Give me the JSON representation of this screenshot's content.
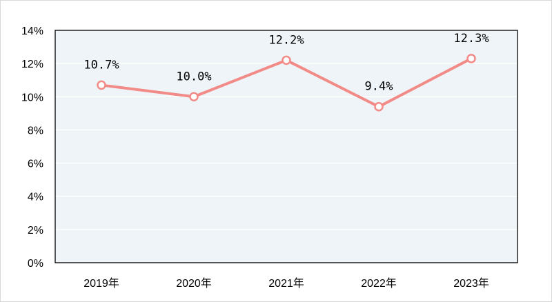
{
  "chart_data": {
    "type": "line",
    "categories": [
      "2019年",
      "2020年",
      "2021年",
      "2022年",
      "2023年"
    ],
    "series": [
      {
        "values": [
          10.7,
          10.0,
          12.2,
          9.4,
          12.3
        ],
        "data_labels": [
          "10.7%",
          "10.0%",
          "12.2%",
          "9.4%",
          "12.3%"
        ],
        "color": "#f28b87"
      }
    ],
    "y_ticks": [
      "0%",
      "2%",
      "4%",
      "6%",
      "8%",
      "10%",
      "12%",
      "14%"
    ],
    "ylim": [
      0,
      14
    ],
    "title": "",
    "xlabel": "",
    "ylabel": "",
    "grid": true,
    "plot_background": "#eef4f7",
    "grid_color": "#ffffff"
  }
}
